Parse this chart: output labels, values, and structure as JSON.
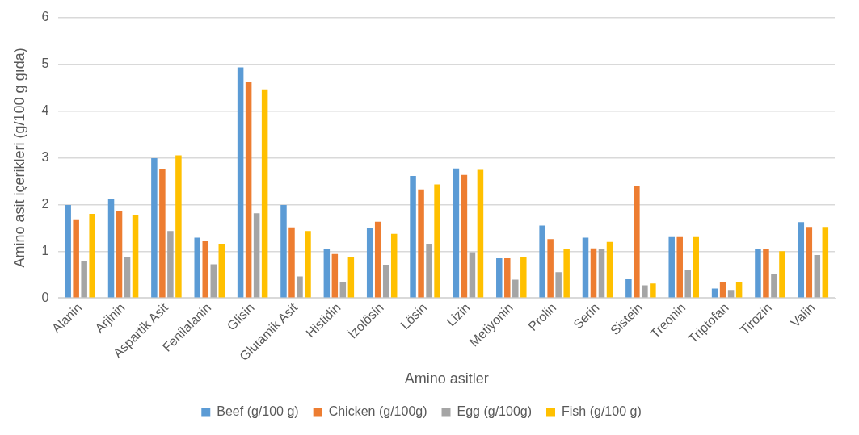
{
  "chart_data": {
    "type": "bar",
    "xlabel": "Amino asitler",
    "ylabel": "Amino asit içerikleri (g/100 g gıda)",
    "categories": [
      "Alanin",
      "Arjinin",
      "Aspartik Asit",
      "Fenilalanin",
      "Glisin",
      "Glutamik Asit",
      "Histidin",
      "İzolösin",
      "Lösin",
      "Lizin",
      "Metiyonin",
      "Prolin",
      "Serin",
      "Sistein",
      "Treonin",
      "Triptofan",
      "Tirozin",
      "Valin"
    ],
    "series": [
      {
        "name": "Beef (g/100 g)",
        "color": "#5b9bd5",
        "values": [
          1.99,
          2.11,
          2.99,
          1.29,
          4.93,
          1.99,
          1.04,
          1.49,
          2.61,
          2.77,
          0.85,
          1.55,
          1.29,
          0.4,
          1.3,
          0.2,
          1.04,
          1.62
        ]
      },
      {
        "name": "Chicken (g/100g)",
        "color": "#ed7d31",
        "values": [
          1.68,
          1.86,
          2.76,
          1.22,
          4.63,
          1.51,
          0.94,
          1.63,
          2.32,
          2.63,
          0.85,
          1.26,
          1.06,
          2.39,
          1.3,
          0.35,
          1.04,
          1.52
        ]
      },
      {
        "name": "Egg (g/100g)",
        "color": "#a5a5a5",
        "values": [
          0.79,
          0.88,
          1.43,
          0.72,
          1.81,
          0.46,
          0.33,
          0.71,
          1.16,
          0.98,
          0.39,
          0.55,
          1.04,
          0.27,
          0.59,
          0.17,
          0.52,
          0.92
        ]
      },
      {
        "name": "Fish (g/100 g)",
        "color": "#ffc000",
        "values": [
          1.8,
          1.78,
          3.05,
          1.16,
          4.46,
          1.43,
          0.87,
          1.37,
          2.43,
          2.74,
          0.88,
          1.05,
          1.2,
          0.31,
          1.3,
          0.33,
          1.0,
          1.52
        ]
      }
    ],
    "ylim": [
      0,
      6
    ],
    "yticks": [
      0,
      1,
      2,
      3,
      4,
      5,
      6
    ],
    "grid": "y",
    "legend": "bottom"
  }
}
